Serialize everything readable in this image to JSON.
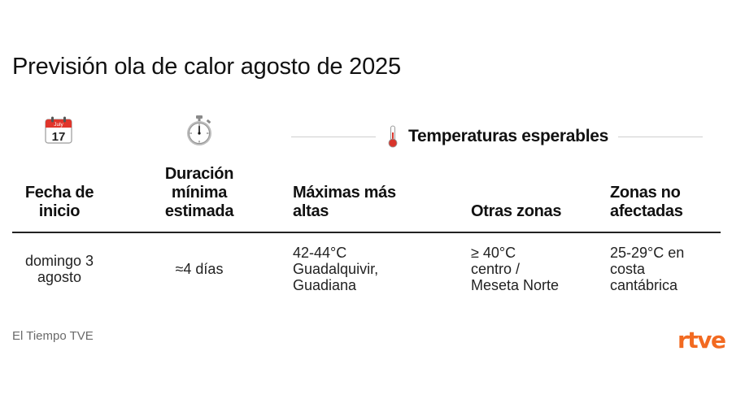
{
  "title": "Previsión ola de calor agosto de 2025",
  "icons": {
    "start_col": "calendar-icon",
    "duration_col": "stopwatch-icon",
    "temps_group": "thermometer-icon",
    "calendar_month": "July",
    "calendar_day": "17"
  },
  "group_header": {
    "label": "Temperaturas esperables"
  },
  "columns": {
    "start": [
      "Fecha de",
      "inicio"
    ],
    "duration": [
      "Duración",
      "mínima",
      "estimada"
    ],
    "max": [
      "Máximas más",
      "altas"
    ],
    "other": [
      "Otras zonas"
    ],
    "unaffected": [
      "Zonas no",
      "afectadas"
    ]
  },
  "row": {
    "start": [
      "domingo 3",
      "agosto"
    ],
    "duration": [
      "≈4 días"
    ],
    "max": [
      "42-44°C",
      "Guadalquivir,",
      "Guadiana"
    ],
    "other": [
      "≥ 40°C",
      "centro /",
      "Meseta Norte"
    ],
    "unaffected": [
      "25-29°C en",
      "costa",
      "cantábrica"
    ]
  },
  "footer": {
    "source": "El Tiempo TVE",
    "logo": "rtve"
  },
  "colors": {
    "text": "#111111",
    "rule": "#222222",
    "divider": "#cfcfcf",
    "source": "#6a6a6a",
    "brand": "#f26a21"
  }
}
